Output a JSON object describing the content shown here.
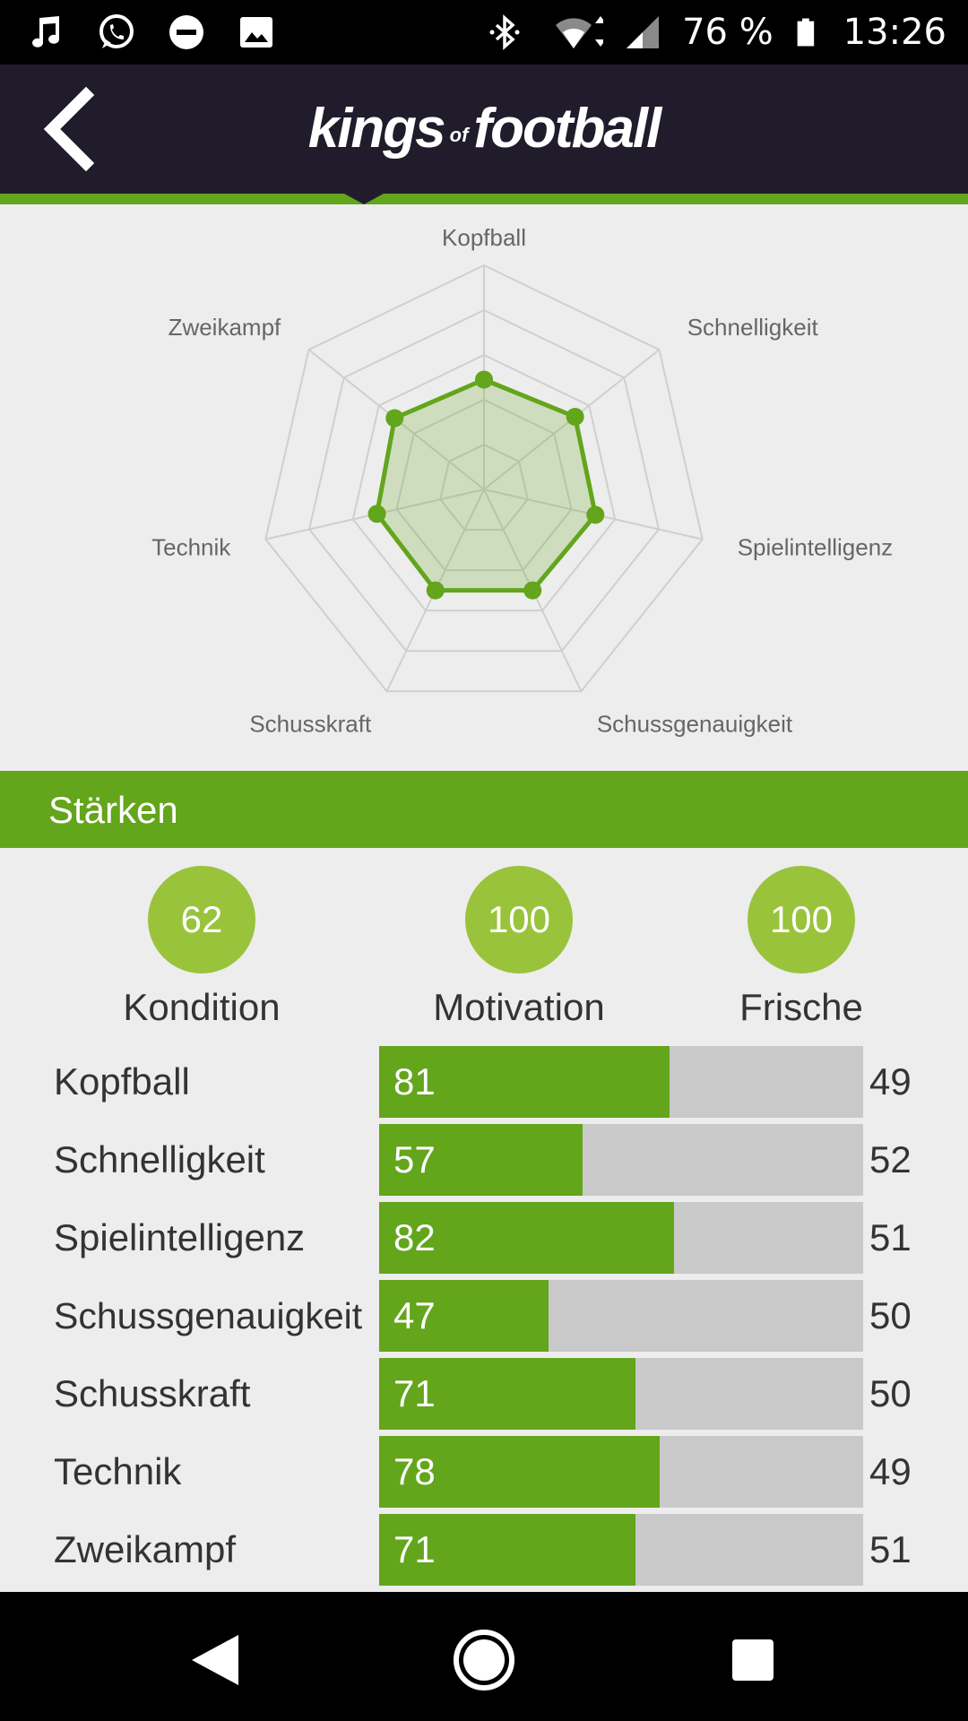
{
  "status_bar": {
    "battery": "76 %",
    "time": "13:26"
  },
  "header": {
    "logo_part1": "kings",
    "logo_part2": "of",
    "logo_part3": "football"
  },
  "radar": {
    "axes": [
      "Kopfball",
      "Schnelligkeit",
      "Spielintelligenz",
      "Schussgenauigkeit",
      "Schusskraft",
      "Technik",
      "Zweikampf"
    ],
    "values": [
      49,
      52,
      51,
      50,
      50,
      49,
      51
    ],
    "max": 100,
    "accent_color": "#63a51b"
  },
  "section": {
    "title": "Stärken"
  },
  "circles": [
    {
      "value": "62",
      "label": "Kondition"
    },
    {
      "value": "100",
      "label": "Motivation"
    },
    {
      "value": "100",
      "label": "Frische"
    }
  ],
  "skills": [
    {
      "label": "Kopfball",
      "value": "81",
      "right": "49",
      "fill": 0.6
    },
    {
      "label": "Schnelligkeit",
      "value": "57",
      "right": "52",
      "fill": 0.42
    },
    {
      "label": "Spielintelligenz",
      "value": "82",
      "right": "51",
      "fill": 0.61
    },
    {
      "label": "Schussgenauigkeit",
      "value": "47",
      "right": "50",
      "fill": 0.35
    },
    {
      "label": "Schusskraft",
      "value": "71",
      "right": "50",
      "fill": 0.53
    },
    {
      "label": "Technik",
      "value": "78",
      "right": "49",
      "fill": 0.58
    },
    {
      "label": "Zweikampf",
      "value": "71",
      "right": "51",
      "fill": 0.53
    }
  ],
  "icons": {
    "status_left": [
      "music-note-icon",
      "whatsapp-icon",
      "do-not-disturb-icon",
      "image-icon"
    ],
    "status_right": [
      "bluetooth-icon",
      "wifi-icon",
      "signal-icon",
      "battery-icon"
    ],
    "nav": [
      "nav-back-icon",
      "nav-home-icon",
      "nav-recents-icon"
    ]
  }
}
